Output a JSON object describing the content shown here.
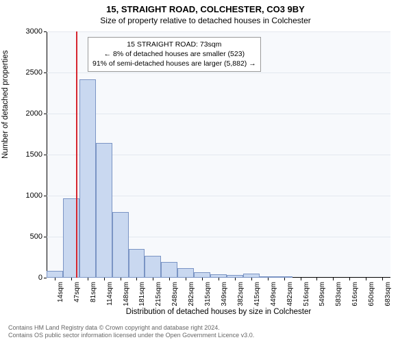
{
  "title_main": "15, STRAIGHT ROAD, COLCHESTER, CO3 9BY",
  "title_sub": "Size of property relative to detached houses in Colchester",
  "yaxis": {
    "label": "Number of detached properties",
    "ticks": [
      0,
      500,
      1000,
      1500,
      2000,
      2500,
      3000
    ],
    "ylim": [
      0,
      3000
    ],
    "label_fontsize": 11.5,
    "tick_fontsize": 11
  },
  "xaxis": {
    "label": "Distribution of detached houses by size in Colchester",
    "tick_labels": [
      "14sqm",
      "47sqm",
      "81sqm",
      "114sqm",
      "148sqm",
      "181sqm",
      "215sqm",
      "248sqm",
      "282sqm",
      "315sqm",
      "349sqm",
      "382sqm",
      "415sqm",
      "449sqm",
      "482sqm",
      "516sqm",
      "549sqm",
      "583sqm",
      "616sqm",
      "650sqm",
      "683sqm"
    ],
    "label_fontsize": 11.5,
    "tick_fontsize": 10
  },
  "chart": {
    "type": "histogram",
    "background_color": "#f7f9fc",
    "grid_color": "#e3e8ef",
    "bar_fill": "#c9d8f0",
    "bar_border": "#7a94c4",
    "marker_color": "#d6252e",
    "marker_bin_index": 1,
    "marker_offset_in_bin": 0.78,
    "values": [
      80,
      970,
      2420,
      1640,
      800,
      350,
      270,
      190,
      120,
      70,
      40,
      30,
      50,
      10,
      10,
      0,
      0,
      0,
      0,
      0,
      0
    ]
  },
  "info_box": {
    "line1": "15 STRAIGHT ROAD: 73sqm",
    "line2": "← 8% of detached houses are smaller (523)",
    "line3": "91% of semi-detached houses are larger (5,882) →",
    "border_color": "#999999",
    "background": "#ffffff",
    "fontsize": 10.5
  },
  "footer": {
    "line1": "Contains HM Land Registry data © Crown copyright and database right 2024.",
    "line2": "Contains OS public sector information licensed under the Open Government Licence v3.0.",
    "color": "#666666",
    "fontsize": 9
  }
}
